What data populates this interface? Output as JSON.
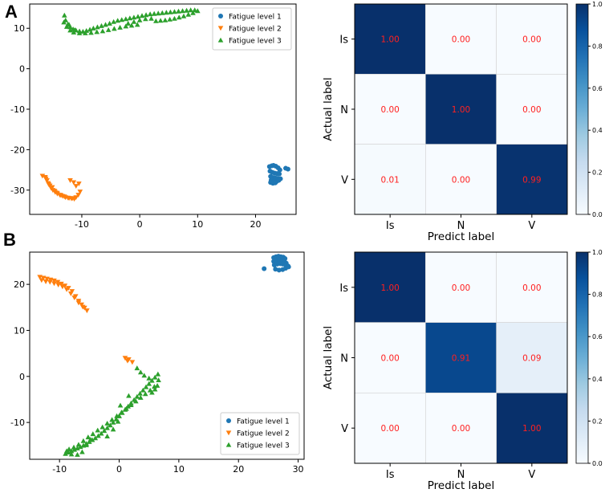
{
  "panels": {
    "A": "A",
    "B": "B"
  },
  "chart_data": [
    {
      "type": "scatter",
      "panel": "A",
      "xlim": [
        -19,
        27
      ],
      "ylim": [
        -36,
        16
      ],
      "xticks": [
        -10,
        0,
        10,
        20
      ],
      "yticks": [
        -30,
        -20,
        -10,
        0,
        10
      ],
      "legend_position": "top-right",
      "series": [
        {
          "name": "Fatigue level  1",
          "marker": "circle",
          "color": "#1f77b4",
          "x": [
            22.4,
            22.8,
            23.1,
            23.5,
            23.9,
            24.2,
            22.5,
            22.9,
            23.3,
            23.7,
            24.1,
            22.6,
            23.0,
            23.4,
            23.8,
            22.7,
            23.2,
            23.6,
            24.0,
            24.3,
            22.6,
            23.0,
            23.4,
            25.2,
            25.6
          ],
          "y": [
            -24.2,
            -24.0,
            -23.9,
            -24.1,
            -24.5,
            -25.0,
            -25.3,
            -25.6,
            -25.8,
            -25.9,
            -26.0,
            -26.6,
            -26.9,
            -27.0,
            -27.1,
            -27.5,
            -27.8,
            -27.9,
            -27.6,
            -27.2,
            -28.1,
            -28.3,
            -28.2,
            -24.6,
            -24.8
          ]
        },
        {
          "name": "Fatigue level  2",
          "marker": "triangle-down",
          "color": "#ff7f0e",
          "x": [
            -16.8,
            -16.3,
            -16.0,
            -15.8,
            -15.5,
            -15.3,
            -15.0,
            -14.6,
            -14.2,
            -13.8,
            -13.3,
            -12.8,
            -12.2,
            -11.6,
            -11.0,
            -10.6,
            -10.3,
            -16.2,
            -15.7,
            -15.1,
            -14.7,
            -14.3,
            -13.6,
            -13.0,
            -12.4,
            -11.8,
            -11.3,
            -12.0,
            -11.4,
            -11.0,
            -10.5
          ],
          "y": [
            -26.5,
            -26.8,
            -27.6,
            -28.3,
            -28.9,
            -29.5,
            -30.0,
            -30.5,
            -30.9,
            -31.2,
            -31.5,
            -31.8,
            -32.0,
            -32.0,
            -31.8,
            -31.2,
            -30.4,
            -27.2,
            -28.6,
            -29.3,
            -30.2,
            -30.7,
            -31.3,
            -31.6,
            -31.9,
            -32.1,
            -32.2,
            -27.6,
            -28.1,
            -29.0,
            -28.4
          ]
        },
        {
          "name": "Fatigue level  3",
          "marker": "triangle",
          "color": "#2ca02c",
          "x": [
            -13.0,
            -12.8,
            -12.4,
            -12.0,
            -11.5,
            -11.0,
            -10.4,
            -9.8,
            -9.2,
            -8.6,
            -8.0,
            -7.3,
            -6.6,
            -5.9,
            -5.2,
            -4.5,
            -3.8,
            -3.1,
            -2.4,
            -1.7,
            -1.0,
            -0.3,
            0.4,
            1.1,
            1.8,
            2.5,
            3.2,
            3.9,
            4.6,
            5.3,
            6.0,
            6.7,
            7.4,
            8.1,
            8.8,
            9.5,
            10.0,
            9.2,
            8.4,
            7.6,
            6.8,
            6.0,
            5.2,
            4.4,
            3.6,
            2.8,
            -0.4,
            -1.4,
            -2.4,
            -3.4,
            -4.4,
            -5.4,
            -6.4,
            -7.4,
            -8.4,
            -9.4,
            -10.4,
            -11.4,
            -12.0,
            -12.6,
            -13.1,
            -12.2,
            -11.2,
            -2.0,
            -1.0,
            0.0,
            1.0,
            2.0
          ],
          "y": [
            13.2,
            12.0,
            11.0,
            10.3,
            9.8,
            9.5,
            9.3,
            9.2,
            9.4,
            9.7,
            10.0,
            10.3,
            10.6,
            10.9,
            11.2,
            11.6,
            11.9,
            12.1,
            12.3,
            12.5,
            12.7,
            12.9,
            13.1,
            13.3,
            13.5,
            13.6,
            13.7,
            13.8,
            13.9,
            14.0,
            14.1,
            14.2,
            14.3,
            14.4,
            14.5,
            14.5,
            14.3,
            13.8,
            13.4,
            13.0,
            12.7,
            12.4,
            12.2,
            12.0,
            11.9,
            11.8,
            10.9,
            10.7,
            10.5,
            10.2,
            9.9,
            9.6,
            9.3,
            9.1,
            8.9,
            8.8,
            8.8,
            9.0,
            9.5,
            10.4,
            11.5,
            10.9,
            9.6,
            11.2,
            11.6,
            12.0,
            12.3,
            12.4
          ]
        }
      ]
    },
    {
      "type": "heatmap",
      "panel": "A",
      "rows": [
        "Is",
        "N",
        "V"
      ],
      "cols": [
        "Is",
        "N",
        "V"
      ],
      "values": [
        [
          1.0,
          0.0,
          0.0
        ],
        [
          0.0,
          1.0,
          0.0
        ],
        [
          0.01,
          0.0,
          0.99
        ]
      ],
      "labels": [
        [
          "1.00",
          "0.00",
          "0.00"
        ],
        [
          "0.00",
          "1.00",
          "0.00"
        ],
        [
          "0.01",
          "0.00",
          "0.99"
        ]
      ],
      "xlabel": "Predict label",
      "ylabel": "Actual label",
      "colorbar_ticks": [
        "0.0",
        "0.2",
        "0.4",
        "0.6",
        "0.8",
        "1.0"
      ],
      "colorbar_range": [
        0,
        1
      ]
    },
    {
      "type": "scatter",
      "panel": "B",
      "xlim": [
        -15,
        31
      ],
      "ylim": [
        -18,
        27
      ],
      "xticks": [
        -10,
        0,
        10,
        20,
        30
      ],
      "yticks": [
        -10,
        0,
        10,
        20
      ],
      "legend_position": "bottom-right",
      "series": [
        {
          "name": "Fatigue level  1",
          "marker": "circle",
          "color": "#1f77b4",
          "x": [
            25.9,
            26.3,
            26.7,
            27.1,
            27.5,
            27.8,
            25.9,
            26.4,
            26.9,
            27.3,
            27.7,
            28.0,
            26.0,
            26.5,
            27.0,
            27.4,
            27.9,
            28.3,
            26.2,
            26.8,
            27.4,
            27.9,
            28.4,
            24.3
          ],
          "y": [
            25.8,
            26.0,
            26.1,
            26.0,
            25.9,
            25.6,
            25.0,
            25.2,
            25.3,
            25.2,
            25.0,
            24.6,
            24.2,
            24.4,
            24.5,
            24.4,
            24.2,
            24.0,
            23.3,
            23.1,
            23.2,
            23.5,
            23.8,
            23.4
          ]
        },
        {
          "name": "Fatigue level  2",
          "marker": "triangle-down",
          "color": "#ff7f0e",
          "x": [
            -13.3,
            -12.7,
            -12.1,
            -11.5,
            -10.9,
            -10.3,
            -9.7,
            -9.1,
            -8.5,
            -7.9,
            -7.3,
            -6.8,
            -6.3,
            -5.8,
            -5.4,
            -13.0,
            -12.3,
            -11.6,
            -10.9,
            -10.2,
            -9.5,
            -8.8,
            -8.1,
            -7.5,
            -6.8,
            -6.1,
            1.0,
            1.6,
            2.2,
            1.4
          ],
          "y": [
            21.6,
            21.4,
            21.2,
            21.0,
            20.8,
            20.5,
            20.1,
            19.7,
            19.2,
            18.5,
            17.4,
            16.4,
            15.6,
            14.9,
            14.3,
            20.9,
            20.6,
            20.5,
            20.2,
            19.9,
            19.5,
            18.9,
            18.0,
            17.1,
            16.0,
            15.1,
            4.0,
            3.7,
            3.1,
            3.4
          ]
        },
        {
          "name": "Fatigue level  3",
          "marker": "triangle",
          "color": "#2ca02c",
          "x": [
            -9.0,
            -8.5,
            -8.0,
            -7.5,
            -7.0,
            -6.5,
            -6.0,
            -5.5,
            -5.0,
            -4.5,
            -4.0,
            -3.5,
            -3.0,
            -2.5,
            -2.0,
            -1.5,
            -1.0,
            -0.5,
            0.0,
            0.5,
            1.0,
            1.5,
            2.0,
            2.5,
            3.0,
            3.5,
            4.0,
            4.5,
            5.0,
            5.5,
            6.0,
            6.5,
            6.6,
            6.4,
            6.0,
            5.5,
            -8.4,
            -7.6,
            -6.8,
            -6.0,
            -5.2,
            -4.4,
            -3.6,
            -2.8,
            -2.0,
            -1.2,
            -0.4,
            0.4,
            1.2,
            2.0,
            2.8,
            3.6,
            4.4,
            5.2,
            5.9,
            -8.8,
            -8.0,
            -7.0,
            -6.2,
            -5.5,
            -4.8,
            3.0,
            3.6,
            4.2,
            5.0,
            0.2,
            1.6,
            0.0,
            -0.2,
            -1.0,
            -2.0
          ],
          "y": [
            -16.8,
            -16.5,
            -16.2,
            -15.9,
            -15.6,
            -15.3,
            -15.0,
            -14.6,
            -14.2,
            -13.8,
            -13.4,
            -12.9,
            -12.4,
            -11.8,
            -11.2,
            -10.6,
            -10.0,
            -9.3,
            -8.6,
            -7.9,
            -7.2,
            -6.5,
            -5.8,
            -5.1,
            -4.4,
            -3.7,
            -3.0,
            -2.3,
            -1.6,
            -0.9,
            -0.2,
            0.5,
            -0.8,
            -2.0,
            -2.8,
            -3.5,
            -15.8,
            -15.4,
            -14.8,
            -14.0,
            -13.2,
            -12.5,
            -11.7,
            -11.0,
            -10.2,
            -9.4,
            -8.6,
            -7.8,
            -7.0,
            -6.2,
            -5.4,
            -4.6,
            -3.8,
            -3.0,
            -2.2,
            -16.2,
            -16.9,
            -17.0,
            -16.4,
            -14.9,
            -13.7,
            1.8,
            0.9,
            0.2,
            -0.4,
            -6.3,
            -4.2,
            -8.6,
            -9.8,
            -11.5,
            -13.0
          ]
        }
      ]
    },
    {
      "type": "heatmap",
      "panel": "B",
      "rows": [
        "Is",
        "N",
        "V"
      ],
      "cols": [
        "Is",
        "N",
        "V"
      ],
      "values": [
        [
          1.0,
          0.0,
          0.0
        ],
        [
          0.0,
          0.91,
          0.09
        ],
        [
          0.0,
          0.0,
          1.0
        ]
      ],
      "labels": [
        [
          "1.00",
          "0.00",
          "0.00"
        ],
        [
          "0.00",
          "0.91",
          "0.09"
        ],
        [
          "0.00",
          "0.00",
          "1.00"
        ]
      ],
      "xlabel": "Predict label",
      "ylabel": "Actual label",
      "colorbar_ticks": [
        "0.0",
        "0.2",
        "0.4",
        "0.6",
        "0.8",
        "1.0"
      ],
      "colorbar_range": [
        0,
        1
      ]
    }
  ]
}
